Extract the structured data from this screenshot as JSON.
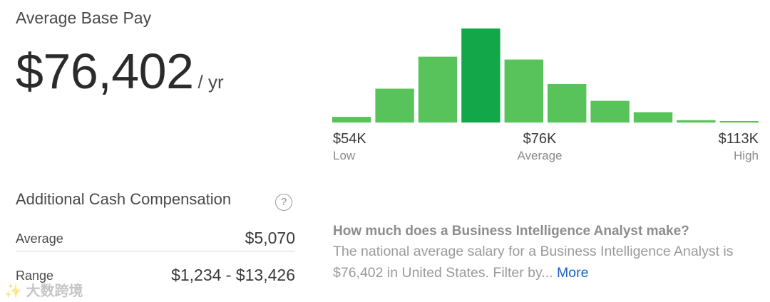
{
  "base_pay": {
    "title": "Average Base Pay",
    "amount": "$76,402",
    "unit": "/ yr"
  },
  "additional_cash": {
    "title": "Additional Cash Compensation",
    "help_icon": "question-circle-icon",
    "rows": [
      {
        "label": "Average",
        "value": "$5,070"
      },
      {
        "label": "Range",
        "value": "$1,234 - $13,426"
      }
    ]
  },
  "chart_data": {
    "type": "bar",
    "bars": [
      0.06,
      0.36,
      0.7,
      1.0,
      0.67,
      0.41,
      0.23,
      0.11,
      0.025,
      0.015
    ],
    "highlight_index": 3,
    "colors": {
      "normal": "#58c35a",
      "highlight": "#12a84a"
    },
    "axis_labels": [
      {
        "value": "$54K",
        "sub": "Low"
      },
      {
        "value": "$76K",
        "sub": "Average"
      },
      {
        "value": "$113K",
        "sub": "High"
      }
    ]
  },
  "info": {
    "question": "How much does a Business Intelligence Analyst make?",
    "text": "The national average salary for a Business Intelligence Analyst is $76,402 in United States. Filter by...",
    "more_label": "More"
  },
  "watermark": "✨ 大数跨境"
}
